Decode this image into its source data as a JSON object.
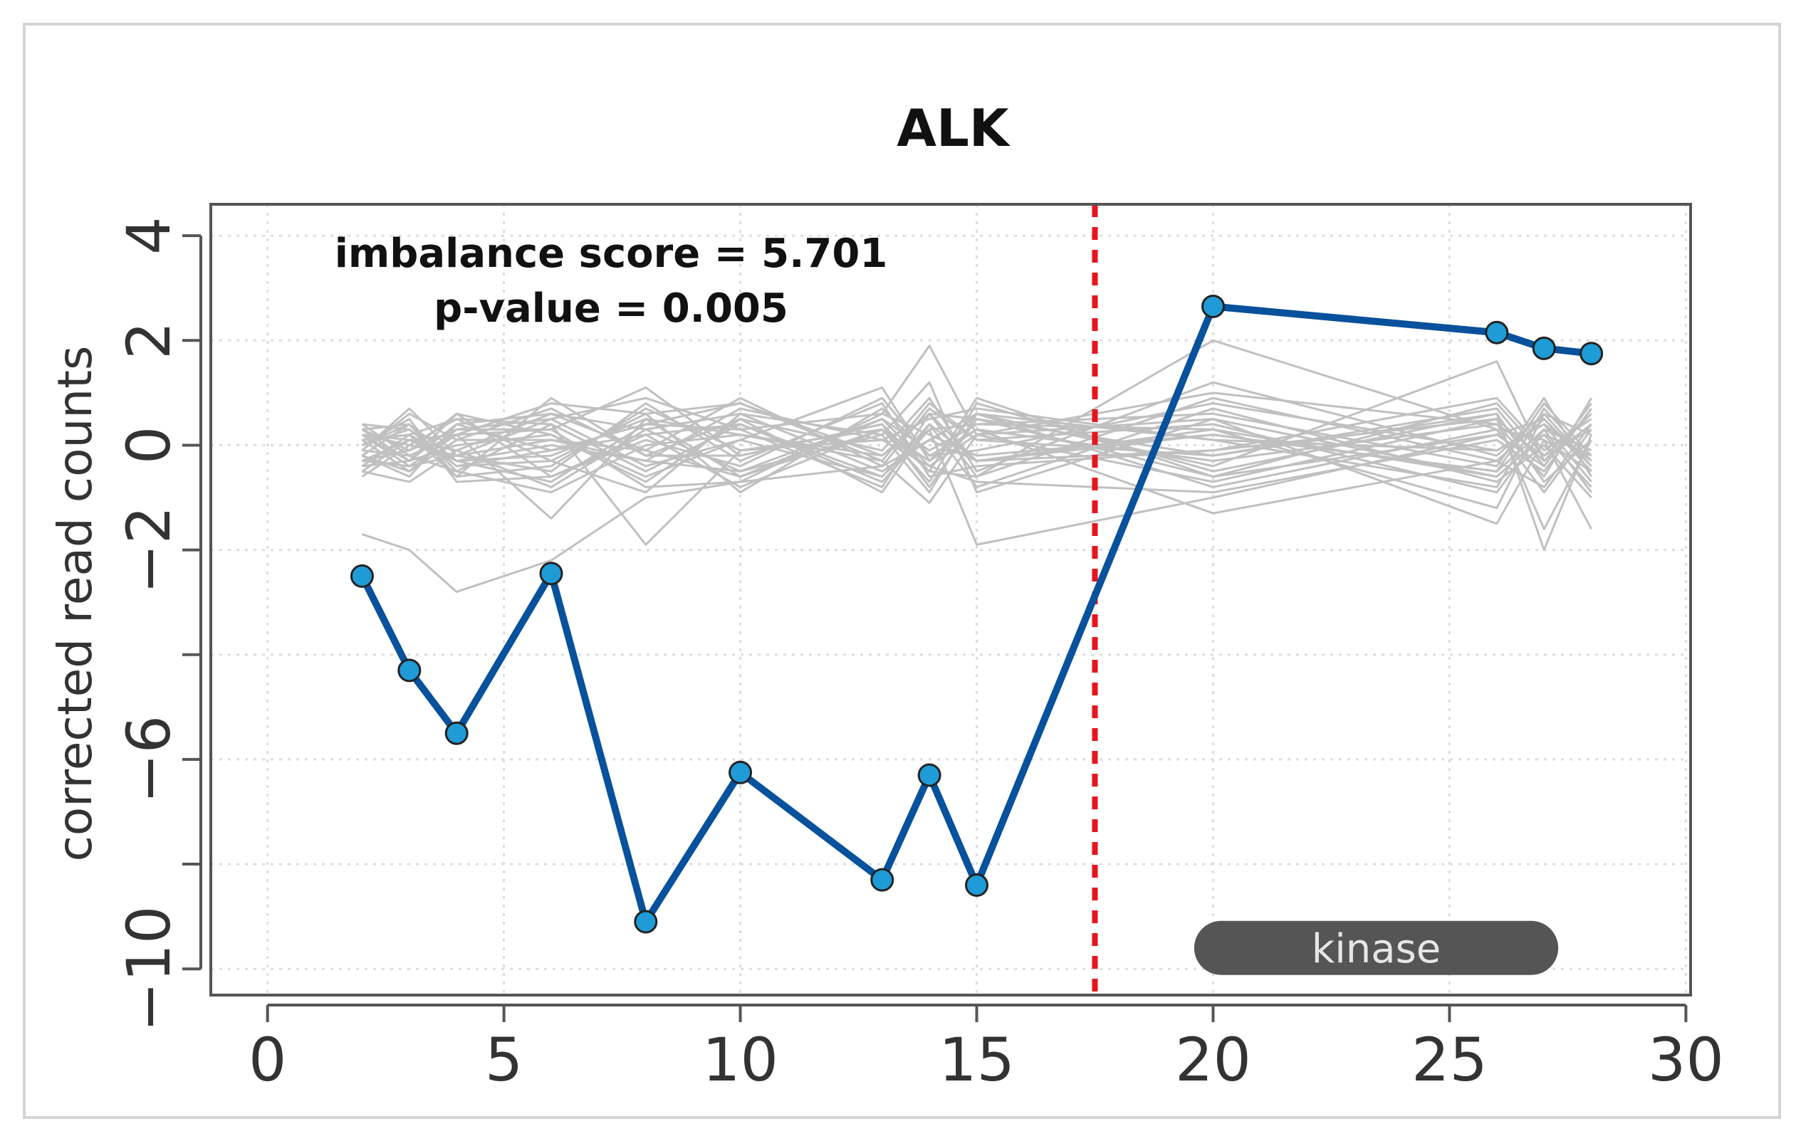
{
  "chart_data": {
    "type": "line",
    "title": "ALK",
    "xlabel": "",
    "ylabel": "corrected read counts",
    "xlim": [
      -1.2,
      30.1
    ],
    "ylim": [
      -10.5,
      4.6
    ],
    "x_ticks": [
      0,
      5,
      10,
      15,
      20,
      25,
      30
    ],
    "x_tick_labels": [
      "0",
      "5",
      "10",
      "15",
      "20",
      "25",
      "30"
    ],
    "y_ticks": [
      4,
      2,
      0,
      -2,
      -4,
      -6,
      -8,
      -10
    ],
    "y_tick_labels": [
      "4",
      "2",
      "0",
      "−2",
      "",
      "−6",
      "",
      "−10"
    ],
    "grid": true,
    "annotations": {
      "score": "imbalance score = 5.701",
      "pvalue": "p-value = 0.005"
    },
    "breakpoint_x": 17.5,
    "domain": {
      "label": "kinase",
      "x_start": 19.6,
      "x_end": 27.3,
      "y": -9.6
    },
    "highlight_series": {
      "x": [
        2,
        3,
        4,
        6,
        8,
        10,
        13,
        14,
        15,
        20,
        26,
        27,
        28
      ],
      "y": [
        -2.5,
        -4.3,
        -5.5,
        -2.45,
        -9.1,
        -6.25,
        -8.3,
        -6.3,
        -8.4,
        2.65,
        2.15,
        1.85,
        1.75
      ],
      "color": "#08519c",
      "marker_color": "#1f9bd7"
    },
    "background_series_color": "#c0c0c0",
    "background_series_x": [
      2,
      3,
      4,
      6,
      8,
      10,
      13,
      14,
      15,
      20,
      26,
      27,
      28
    ],
    "background_series": [
      [
        -1.7,
        -2.0,
        -2.8,
        -2.2,
        -1.0,
        -0.7,
        -0.4,
        0.1,
        -0.3,
        0.2,
        -0.5,
        0.3,
        -0.1
      ],
      [
        -0.1,
        0.7,
        -0.2,
        0.5,
        0.9,
        0.3,
        0.6,
        1.9,
        0.2,
        1.0,
        0.4,
        -0.2,
        0.3
      ],
      [
        0.2,
        -0.3,
        0.4,
        -0.1,
        0.2,
        -0.8,
        0.3,
        -0.5,
        0.9,
        -0.6,
        0.2,
        0.5,
        -0.4
      ],
      [
        -0.4,
        0.2,
        -0.6,
        0.9,
        -0.2,
        0.5,
        -0.9,
        0.4,
        -0.3,
        0.3,
        -1.2,
        0.6,
        0.2
      ],
      [
        0.1,
        -0.5,
        0.3,
        0.3,
        1.1,
        -0.2,
        0.4,
        -0.8,
        0.5,
        -0.2,
        0.7,
        -0.4,
        0.8
      ],
      [
        -0.2,
        0.4,
        -0.3,
        -0.7,
        0.4,
        0.8,
        -0.2,
        0.6,
        -0.6,
        2.0,
        0.3,
        0.1,
        -0.5
      ],
      [
        0.3,
        -0.1,
        0.6,
        0.2,
        -0.6,
        0.1,
        1.1,
        -0.3,
        0.3,
        -1.3,
        -0.3,
        -0.8,
        0.4
      ],
      [
        -0.5,
        -0.7,
        -0.1,
        0.6,
        0.3,
        -0.5,
        0.2,
        1.2,
        -0.9,
        0.5,
        -0.6,
        0.2,
        -0.2
      ],
      [
        0.0,
        0.3,
        -0.4,
        -0.3,
        -0.9,
        0.6,
        -0.5,
        0.1,
        0.6,
        -0.4,
        1.6,
        -0.3,
        0.6
      ],
      [
        -0.3,
        0.1,
        0.2,
        0.8,
        0.6,
        -0.9,
        0.7,
        -0.2,
        -0.1,
        0.8,
        -0.1,
        0.4,
        -0.7
      ],
      [
        0.4,
        -0.2,
        -0.5,
        -0.9,
        0.0,
        0.2,
        -0.3,
        -1.1,
        0.2,
        -0.7,
        0.5,
        -1.6,
        0.1
      ],
      [
        -0.1,
        0.6,
        0.1,
        0.1,
        -0.3,
        0.7,
        0.1,
        0.5,
        0.7,
        0.1,
        -0.8,
        0.7,
        -0.3
      ],
      [
        0.2,
        -0.4,
        -0.2,
        -0.5,
        0.8,
        -0.3,
        0.8,
        -0.6,
        -0.4,
        -0.1,
        0.9,
        -0.1,
        0.5
      ],
      [
        -0.6,
        0.0,
        0.5,
        0.4,
        -0.5,
        0.4,
        -0.7,
        0.3,
        0.4,
        0.6,
        -0.4,
        0.9,
        -0.6
      ],
      [
        0.1,
        0.2,
        -0.3,
        -0.2,
        0.5,
        -0.6,
        0.5,
        -0.4,
        -0.7,
        -0.9,
        0.1,
        -0.5,
        0.7
      ],
      [
        -0.2,
        -0.6,
        0.4,
        0.6,
        -0.1,
        0.9,
        -0.4,
        0.7,
        0.1,
        0.4,
        -0.9,
        0.3,
        -0.9
      ],
      [
        0.3,
        0.4,
        -0.6,
        -0.4,
        0.7,
        -0.1,
        0.3,
        -0.7,
        0.8,
        -0.5,
        0.6,
        -2.0,
        0.2
      ],
      [
        -0.4,
        -0.3,
        0.0,
        0.2,
        -0.7,
        0.5,
        -0.1,
        0.9,
        -0.5,
        1.2,
        -0.2,
        0.6,
        -0.4
      ],
      [
        0.0,
        0.5,
        -0.7,
        -0.6,
        0.1,
        -0.4,
        0.9,
        -0.2,
        0.3,
        -0.3,
        0.4,
        -0.6,
        0.9
      ],
      [
        -0.3,
        -0.1,
        0.3,
        0.5,
        -0.4,
        0.1,
        -0.6,
        0.4,
        -0.8,
        0.7,
        -0.7,
        0.0,
        -1.0
      ],
      [
        0.2,
        0.1,
        -0.1,
        -0.8,
        0.3,
        0.6,
        0.2,
        -0.9,
        0.6,
        -0.8,
        0.3,
        -0.9,
        0.3
      ],
      [
        -0.1,
        -0.2,
        0.2,
        0.3,
        -0.8,
        -0.7,
        0.6,
        0.2,
        -0.2,
        0.2,
        -0.5,
        0.8,
        -0.2
      ],
      [
        0.4,
        0.3,
        -0.4,
        -0.1,
        0.4,
        0.3,
        -0.8,
        0.6,
        0.5,
        -0.6,
        0.8,
        -0.2,
        0.6
      ],
      [
        -0.2,
        -0.5,
        0.1,
        0.7,
        -0.2,
        -0.2,
        0.4,
        -0.5,
        -0.6,
        0.9,
        -0.3,
        0.5,
        -0.5
      ],
      [
        0.1,
        0.2,
        0.5,
        -0.3,
        0.6,
        0.8,
        -0.3,
        0.8,
        0.1,
        -0.2,
        0.6,
        -0.7,
        0.1
      ],
      [
        -0.5,
        0.1,
        -0.3,
        0.0,
        -0.3,
        -0.5,
        0.5,
        -0.1,
        0.4,
        0.3,
        -0.6,
        0.2,
        -0.8
      ],
      [
        0.3,
        -0.3,
        0.6,
        -0.6,
        0.2,
        0.4,
        -0.6,
        0.3,
        -1.9,
        -1.0,
        0.2,
        -0.4,
        0.8
      ],
      [
        0.0,
        0.4,
        -0.5,
        0.4,
        -1.9,
        -0.1,
        0.1,
        -0.4,
        0.2,
        0.5,
        -1.5,
        0.1,
        -1.6
      ],
      [
        -0.3,
        -0.4,
        0.2,
        -1.4,
        0.5,
        0.2,
        -0.2,
        0.6,
        -0.3,
        -0.1,
        0.5,
        -0.3,
        0.4
      ],
      [
        0.2,
        0.0,
        -0.2,
        0.1,
        -0.1,
        -0.6,
        0.3,
        -0.3,
        0.6,
        0.1,
        -0.1,
        0.4,
        -0.3
      ]
    ]
  }
}
